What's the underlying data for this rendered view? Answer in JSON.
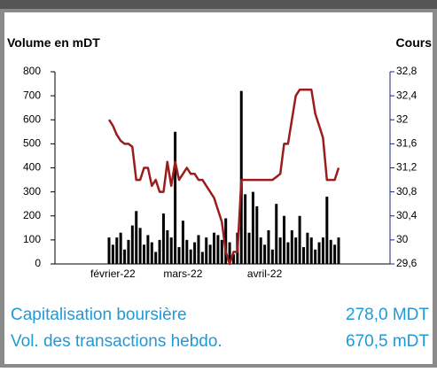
{
  "chart_data": {
    "type": "bar",
    "y_title": "Volume en mDT",
    "y2_title": "Cours",
    "categories": [
      null,
      "février-22",
      null,
      null,
      null,
      null,
      null,
      null,
      null,
      null,
      null,
      null,
      null,
      null,
      null,
      null,
      null,
      null,
      null,
      "mars-22",
      null,
      null,
      null,
      null,
      null,
      null,
      null,
      null,
      null,
      null,
      null,
      null,
      null,
      null,
      null,
      null,
      null,
      null,
      null,
      null,
      "avril-22",
      null,
      null,
      null,
      null,
      null,
      null,
      null,
      null,
      null,
      null,
      null,
      null,
      null,
      null,
      null,
      null,
      null,
      null,
      null
    ],
    "series": [
      {
        "type": "bar",
        "color": "#000000",
        "values": [
          110,
          80,
          110,
          130,
          60,
          100,
          160,
          220,
          150,
          80,
          120,
          90,
          50,
          100,
          210,
          140,
          110,
          550,
          70,
          180,
          100,
          60,
          90,
          120,
          50,
          110,
          80,
          130,
          120,
          100,
          190,
          90,
          40,
          130,
          720,
          290,
          130,
          300,
          240,
          110,
          80,
          140,
          60,
          250,
          110,
          200,
          90,
          140,
          110,
          200,
          70,
          130,
          110,
          60,
          90,
          110,
          280,
          100,
          80,
          110
        ]
      },
      {
        "type": "line",
        "axis": "y2",
        "color": "#9b1c1c",
        "values": [
          32.0,
          31.9,
          31.75,
          31.65,
          31.6,
          31.6,
          31.55,
          31.0,
          31.0,
          31.2,
          31.2,
          30.9,
          31.0,
          30.8,
          30.8,
          31.3,
          30.9,
          31.3,
          31.0,
          31.1,
          31.2,
          31.1,
          31.1,
          31.0,
          31.0,
          30.9,
          30.8,
          30.7,
          30.5,
          30.3,
          29.8,
          29.6,
          29.8,
          29.8,
          31.0,
          31.0,
          31.0,
          31.0,
          31.0,
          31.0,
          31.0,
          31.0,
          31.0,
          31.05,
          31.1,
          31.6,
          31.6,
          32.0,
          32.4,
          32.5,
          32.5,
          32.5,
          32.5,
          32.1,
          31.9,
          31.7,
          31.0,
          31.0,
          31.0,
          31.2
        ]
      }
    ],
    "ylim": [
      0,
      800
    ],
    "yticks": [
      0,
      100,
      200,
      300,
      400,
      500,
      600,
      700,
      800
    ],
    "y2lim": [
      29.6,
      32.8
    ],
    "y2ticks": [
      {
        "value": 29.6,
        "label": "29,6"
      },
      30,
      {
        "value": 30.4,
        "label": "30,4"
      },
      {
        "value": 30.8,
        "label": "30,8"
      },
      {
        "value": 31.2,
        "label": "31,2"
      },
      {
        "value": 31.6,
        "label": "31,6"
      },
      32,
      {
        "value": 32.4,
        "label": "32,4"
      },
      {
        "value": 32.8,
        "label": "32,8"
      }
    ]
  },
  "summary": {
    "rows": [
      [
        "Capitalisation boursière",
        "278,0 MDT"
      ],
      [
        "Vol. des transactions hebdo.",
        "670,5 mDT"
      ]
    ]
  }
}
